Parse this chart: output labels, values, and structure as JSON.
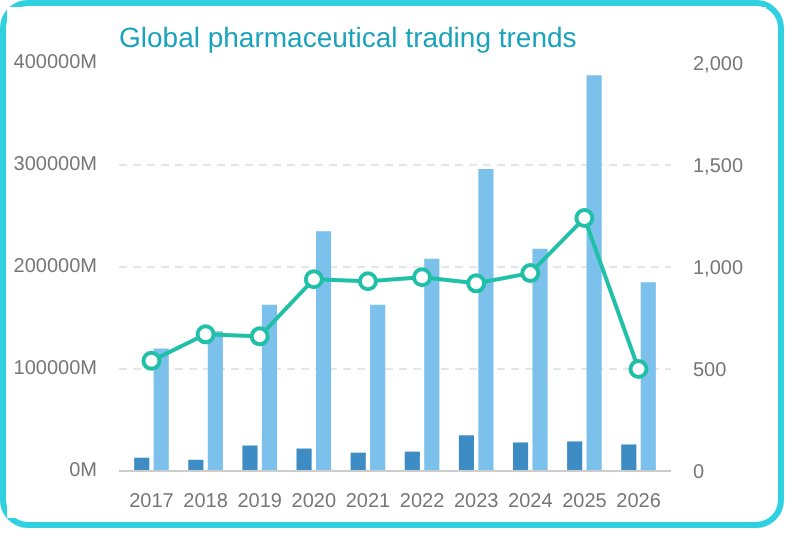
{
  "chart_data": {
    "type": "bar",
    "title": "Global pharmaceutical trading trends",
    "categories": [
      "2017",
      "2018",
      "2019",
      "2020",
      "2021",
      "2022",
      "2023",
      "2024",
      "2025",
      "2026"
    ],
    "series": [
      {
        "color": "#3d8cc4",
        "values": [
          13000,
          11000,
          25000,
          22000,
          18000,
          19000,
          35000,
          28000,
          29000,
          26000
        ]
      },
      {
        "color": "#7cc1ec",
        "values": [
          120000,
          137000,
          163000,
          235000,
          163000,
          208000,
          296000,
          218000,
          388000,
          185000
        ]
      },
      {
        "type": "line",
        "axis": "y2",
        "color": "#1fbfa8",
        "marker": "circle",
        "values": [
          540,
          670,
          660,
          940,
          930,
          950,
          920,
          970,
          1240,
          500
        ]
      }
    ],
    "ylim": [
      0,
      400000
    ],
    "yticks": [
      {
        "value": 0,
        "label": "0M"
      },
      {
        "value": 100000,
        "label": "100000M"
      },
      {
        "value": 200000,
        "label": "200000M"
      },
      {
        "value": 300000,
        "label": "300000M"
      },
      {
        "value": 400000,
        "label": "400000M"
      }
    ],
    "y2lim": [
      0,
      2000
    ],
    "y2ticks": [
      0,
      500,
      {
        "value": 1000,
        "label": "1,000"
      },
      {
        "value": 1500,
        "label": "1,500"
      },
      {
        "value": 2000,
        "label": "2,000"
      }
    ],
    "grid": "y"
  }
}
